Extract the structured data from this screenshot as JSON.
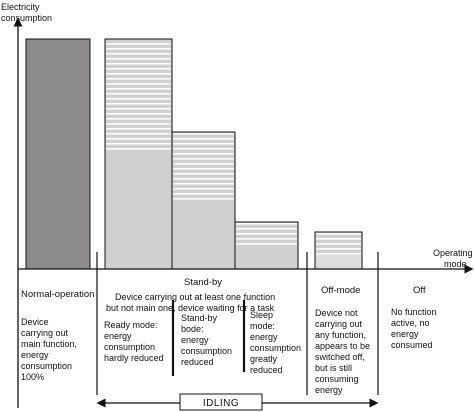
{
  "axes": {
    "y_label": [
      "Electricity",
      "consumption"
    ],
    "x_label": [
      "Operating",
      "mode"
    ]
  },
  "modes": {
    "normal": {
      "title": "Normal-operation",
      "desc": [
        "Device",
        "carrying out",
        "main function,",
        "energy",
        "consumption",
        "100%"
      ]
    },
    "standby": {
      "title": "Stand-by",
      "desc": [
        "Device carrying out at least one function",
        "but not main one, device waiting for a task"
      ],
      "sub": {
        "ready": [
          "Ready mode:",
          "energy",
          "consumption",
          "hardly reduced"
        ],
        "standby_bode": [
          "Stand-by",
          "bode:",
          "energy",
          "consumption",
          "reduced"
        ],
        "sleep": [
          "Sleep",
          "mode:",
          "energy",
          "consumption",
          "greatly",
          "reduced"
        ]
      }
    },
    "offmode": {
      "title": "Off-mode",
      "desc": [
        "Device not",
        "carrying out",
        "any function,",
        "appears to be",
        "switched off,",
        "but is still",
        "consuming",
        "energy"
      ]
    },
    "off": {
      "title": "Off",
      "desc": [
        "No function",
        "active, no",
        "energy",
        "consumed"
      ]
    }
  },
  "idling_label": "IDLING",
  "colors": {
    "normal_bar": "#8c8a8a",
    "standby_bar": "#cfcfcf",
    "stripe": "#ffffff",
    "line": "#111111"
  }
}
